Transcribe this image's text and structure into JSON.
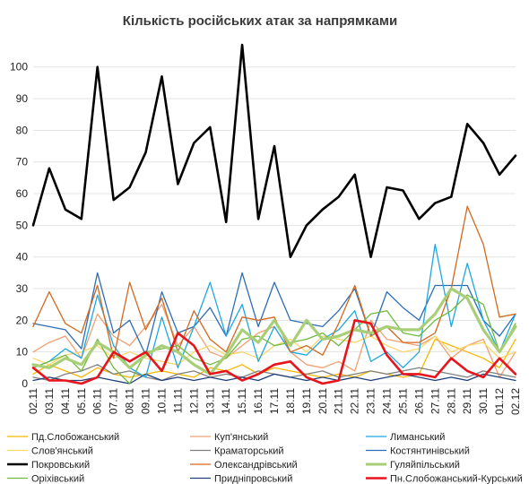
{
  "chart_data": {
    "type": "line",
    "title": "Кількість російських атак за напрямками",
    "xlabel": "",
    "ylabel": "",
    "ylim": [
      0,
      107
    ],
    "yticks": [
      0,
      10,
      20,
      30,
      40,
      50,
      60,
      70,
      80,
      90,
      100
    ],
    "grid": "horizontal",
    "legend_position": "bottom",
    "x": [
      "02.11",
      "03.11",
      "04.11",
      "05.11",
      "06.11",
      "07.11",
      "08.11",
      "09.11",
      "10.11",
      "11.11",
      "12.11",
      "13.11",
      "14.11",
      "15.11",
      "16.11",
      "17.11",
      "18.11",
      "19.11",
      "20.11",
      "21.11",
      "22.11",
      "23.11",
      "24.11",
      "25.11",
      "26.11",
      "27.11",
      "28.11",
      "29.11",
      "30.11",
      "01.12",
      "02.12"
    ],
    "series": [
      {
        "name": "Пд.Слобожанський",
        "color": "#f5b800",
        "width": 1.3,
        "values": [
          3,
          6,
          4,
          2,
          5,
          3,
          2,
          3,
          4,
          3,
          2,
          5,
          4,
          6,
          3,
          5,
          4,
          3,
          2,
          3,
          2,
          4,
          3,
          2,
          3,
          14,
          12,
          10,
          8,
          5,
          14
        ]
      },
      {
        "name": "Куп'янський",
        "color": "#f0a070",
        "width": 1.3,
        "values": [
          10,
          13,
          15,
          8,
          22,
          15,
          12,
          18,
          25,
          12,
          18,
          10,
          8,
          12,
          16,
          18,
          10,
          6,
          5,
          7,
          4,
          20,
          14,
          13,
          12,
          15,
          8,
          12,
          14,
          2,
          10
        ]
      },
      {
        "name": "Лиманський",
        "color": "#1ea7e1",
        "width": 1.3,
        "values": [
          5,
          7,
          11,
          8,
          28,
          12,
          5,
          2,
          21,
          5,
          18,
          32,
          15,
          25,
          7,
          18,
          10,
          9,
          14,
          17,
          23,
          7,
          10,
          5,
          10,
          44,
          18,
          38,
          20,
          10,
          22
        ]
      },
      {
        "name": "Слов'янський",
        "color": "#f9d66a",
        "width": 1.3,
        "values": [
          8,
          6,
          9,
          10,
          12,
          8,
          10,
          8,
          7,
          6,
          10,
          12,
          9,
          10,
          8,
          12,
          14,
          10,
          15,
          14,
          13,
          15,
          12,
          10,
          11,
          15,
          10,
          12,
          13,
          8,
          10
        ]
      },
      {
        "name": "Краматорський",
        "color": "#808080",
        "width": 1.3,
        "values": [
          2,
          1,
          3,
          4,
          6,
          3,
          4,
          2,
          1,
          3,
          4,
          2,
          3,
          2,
          4,
          3,
          2,
          3,
          4,
          2,
          3,
          4,
          3,
          4,
          5,
          4,
          3,
          2,
          4,
          3,
          2
        ]
      },
      {
        "name": "Костянтинівський",
        "color": "#2e6db4",
        "width": 1.3,
        "values": [
          19,
          18,
          17,
          11,
          35,
          16,
          20,
          9,
          29,
          16,
          18,
          24,
          15,
          35,
          18,
          32,
          20,
          19,
          18,
          23,
          30,
          15,
          29,
          24,
          20,
          31,
          31,
          31,
          20,
          15,
          22
        ]
      },
      {
        "name": "Покровський",
        "color": "#000000",
        "width": 2.6,
        "values": [
          50,
          68,
          55,
          52,
          100,
          58,
          62,
          73,
          97,
          63,
          76,
          81,
          51,
          107,
          52,
          75,
          40,
          50,
          55,
          59,
          66,
          40,
          62,
          61,
          52,
          57,
          59,
          82,
          76,
          66,
          72
        ]
      },
      {
        "name": "Олександрівський",
        "color": "#d2691e",
        "width": 1.3,
        "values": [
          18,
          29,
          19,
          16,
          31,
          8,
          32,
          17,
          27,
          10,
          23,
          14,
          10,
          21,
          20,
          21,
          10,
          12,
          9,
          19,
          31,
          15,
          18,
          13,
          13,
          16,
          30,
          56,
          44,
          21,
          22
        ]
      },
      {
        "name": "Гуляйпільський",
        "color": "#a8cf78",
        "width": 3.2,
        "values": [
          6,
          5,
          8,
          6,
          13,
          10,
          5,
          9,
          12,
          10,
          6,
          3,
          9,
          17,
          13,
          20,
          12,
          20,
          14,
          15,
          17,
          16,
          18,
          17,
          17,
          22,
          30,
          27,
          17,
          10,
          18
        ]
      },
      {
        "name": "Оріхівський",
        "color": "#6fba3c",
        "width": 1.3,
        "values": [
          5,
          7,
          9,
          4,
          14,
          5,
          0,
          10,
          11,
          12,
          8,
          6,
          8,
          14,
          15,
          12,
          13,
          14,
          16,
          12,
          17,
          22,
          23,
          16,
          15,
          20,
          23,
          28,
          25,
          10,
          19
        ]
      },
      {
        "name": "Придніпровський",
        "color": "#1f3f78",
        "width": 1.3,
        "values": [
          1,
          2,
          1,
          1,
          2,
          1,
          0,
          3,
          1,
          2,
          1,
          2,
          1,
          2,
          1,
          3,
          2,
          1,
          2,
          1,
          2,
          1,
          2,
          3,
          2,
          1,
          2,
          1,
          3,
          2,
          1
        ]
      },
      {
        "name": "Пн.Слобожанський-Курський",
        "color": "#e8141c",
        "width": 2.6,
        "values": [
          5,
          1,
          1,
          0,
          2,
          10,
          7,
          10,
          4,
          16,
          12,
          3,
          4,
          1,
          3,
          6,
          7,
          2,
          0,
          1,
          20,
          19,
          9,
          3,
          3,
          2,
          8,
          4,
          2,
          8,
          3
        ]
      }
    ]
  }
}
